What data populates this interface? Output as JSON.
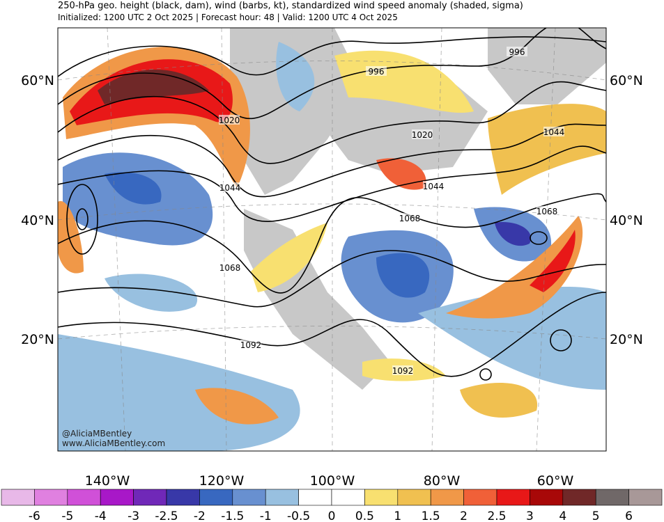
{
  "header": {
    "title": "250-hPa geo. height (black, dam), wind (barbs, kt), standardized wind speed anomaly (shaded, sigma)",
    "subtitle": "Initialized: 1200 UTC 2 Oct 2025 | Forecast hour: 48 | Valid: 1200 UTC 4 Oct 2025"
  },
  "map": {
    "lat_labels": [
      "60°N",
      "40°N",
      "20°N"
    ],
    "lon_labels": [
      "140°W",
      "120°W",
      "100°W",
      "80°W",
      "60°W"
    ],
    "contour_labels": [
      "996",
      "996",
      "1020",
      "1020",
      "1044",
      "1044",
      "1044",
      "1068",
      "1068",
      "1068",
      "1092",
      "1092"
    ],
    "watermark": [
      "@AliciaMBentley",
      "www.AliciaMBentley.com"
    ]
  },
  "colorbar": {
    "colors": [
      "#e8b8e8",
      "#e080e0",
      "#d050d8",
      "#a818c8",
      "#7028b8",
      "#3838a8",
      "#3868c0",
      "#6890d0",
      "#98c0e0",
      "#ffffff",
      "#ffffff",
      "#f8e070",
      "#f0c050",
      "#f09848",
      "#f06038",
      "#e81818",
      "#a80808",
      "#702828",
      "#706868",
      "#a89898"
    ],
    "labels": [
      -6,
      -5,
      -4,
      -3,
      -2.5,
      -2,
      -1.5,
      -1,
      -0.5,
      0,
      0.5,
      1,
      1.5,
      2,
      2.5,
      3,
      4,
      5,
      6
    ]
  }
}
